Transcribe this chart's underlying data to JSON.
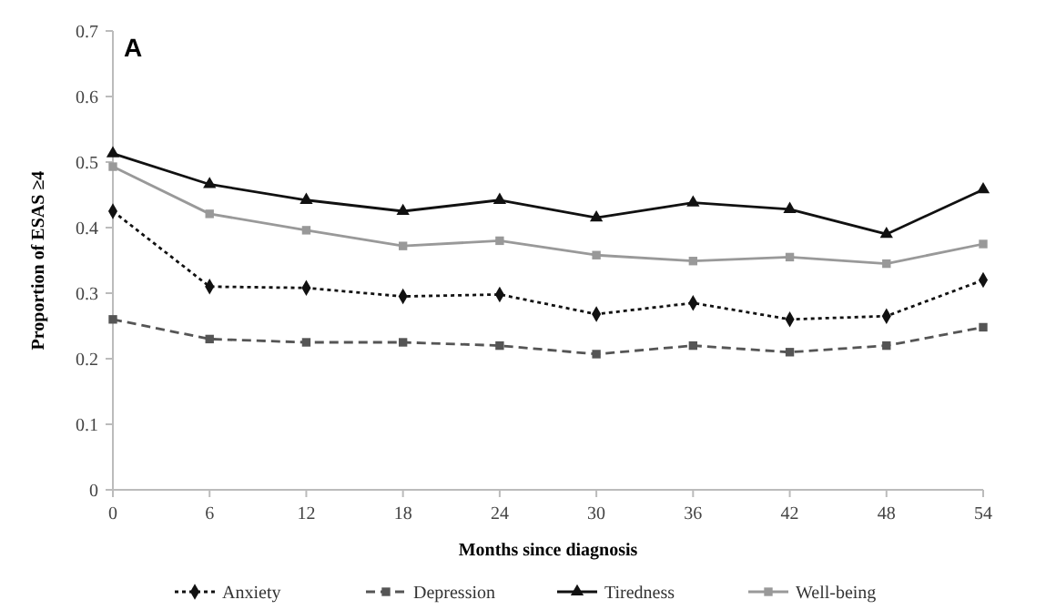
{
  "chart_data": {
    "type": "line",
    "xlabel": "Months since diagnosis",
    "ylabel": "Proportion of ESAS ≥4",
    "annotations": [
      "A"
    ],
    "x": [
      0,
      6,
      12,
      18,
      24,
      30,
      36,
      42,
      48,
      54
    ],
    "xlim": [
      0,
      54
    ],
    "xticks": [
      0,
      6,
      12,
      18,
      24,
      30,
      36,
      42,
      48,
      54
    ],
    "ylim": [
      0,
      0.7
    ],
    "yticks": [
      0,
      0.1,
      0.2,
      0.3,
      0.4,
      0.5,
      0.6,
      0.7
    ],
    "grid": false,
    "legend": "bottom",
    "series": [
      {
        "name": "Anxiety",
        "color": "#111111",
        "marker": "diamond",
        "line_style": "dotted",
        "values": [
          0.425,
          0.31,
          0.308,
          0.295,
          0.298,
          0.268,
          0.285,
          0.26,
          0.265,
          0.32
        ]
      },
      {
        "name": "Depression",
        "color": "#555555",
        "marker": "square",
        "line_style": "dashed",
        "values": [
          0.26,
          0.23,
          0.225,
          0.225,
          0.22,
          0.207,
          0.22,
          0.21,
          0.22,
          0.248
        ]
      },
      {
        "name": "Tiredness",
        "color": "#111111",
        "marker": "triangle",
        "line_style": "solid",
        "values": [
          0.513,
          0.466,
          0.442,
          0.425,
          0.442,
          0.415,
          0.438,
          0.428,
          0.39,
          0.458
        ]
      },
      {
        "name": "Well-being",
        "color": "#999999",
        "marker": "square",
        "line_style": "solid",
        "values": [
          0.493,
          0.421,
          0.396,
          0.372,
          0.38,
          0.358,
          0.349,
          0.355,
          0.345,
          0.375
        ]
      }
    ]
  }
}
